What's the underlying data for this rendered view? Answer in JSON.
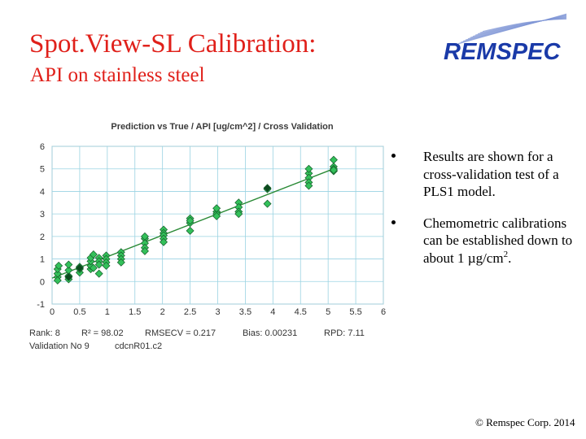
{
  "slide": {
    "title": "Spot.View-SL Calibration:",
    "subtitle": "API on stainless steel",
    "footer": "© Remspec Corp. 2014"
  },
  "logo": {
    "text": "REMSPEC",
    "color": "#1a3aa8",
    "stripe_color": "#7f95d6"
  },
  "bullets": [
    {
      "text": "Results are shown for a cross-validation test of a PLS1 model.",
      "superscript": ""
    },
    {
      "text": "Chemometric calibrations can be established down to about 1 µg/cm",
      "superscript": "2",
      "suffix": "."
    }
  ],
  "chart_data": {
    "type": "scatter",
    "title": "Prediction vs True  /  API [ug/cm^2]  /  Cross Validation",
    "xlim": [
      0,
      6
    ],
    "ylim": [
      -1,
      6
    ],
    "x_ticks": [
      "0",
      "0.5",
      "1",
      "1.5",
      "2",
      "2.5",
      "3",
      "3.5",
      "4",
      "4.5",
      "5",
      "5.5",
      "6"
    ],
    "y_ticks": [
      "-1",
      "0",
      "1",
      "2",
      "3",
      "4",
      "5",
      "6"
    ],
    "grid": true,
    "colors": {
      "point": "#33c05a",
      "point_dark": "#155c2a",
      "highlight": "#0d4a1e",
      "line": "#2a8a36",
      "grid": "#9ad3e2",
      "axis_text": "#333333",
      "title": "#3a3a3a"
    },
    "series": [
      {
        "points": [
          [
            0.1,
            0.2
          ],
          [
            0.1,
            0.35
          ],
          [
            0.1,
            0.55
          ],
          [
            0.1,
            0.05
          ],
          [
            0.12,
            0.7
          ],
          [
            0.3,
            0.25
          ],
          [
            0.3,
            0.5
          ],
          [
            0.3,
            0.75
          ],
          [
            0.3,
            0.1
          ],
          [
            0.5,
            0.4
          ],
          [
            0.5,
            0.55
          ],
          [
            0.5,
            0.65
          ],
          [
            0.7,
            0.55
          ],
          [
            0.7,
            0.7
          ],
          [
            0.7,
            0.9
          ],
          [
            0.7,
            1.05
          ],
          [
            0.75,
            1.2
          ],
          [
            0.75,
            0.6
          ],
          [
            0.85,
            1.05
          ],
          [
            0.85,
            0.9
          ],
          [
            0.85,
            0.75
          ],
          [
            0.85,
            0.35
          ],
          [
            0.98,
            1.15
          ],
          [
            0.98,
            1.0
          ],
          [
            0.98,
            0.85
          ],
          [
            0.98,
            0.7
          ],
          [
            1.25,
            1.3
          ],
          [
            1.25,
            1.15
          ],
          [
            1.25,
            1.0
          ],
          [
            1.25,
            0.85
          ],
          [
            1.68,
            1.9
          ],
          [
            1.68,
            1.7
          ],
          [
            1.68,
            1.5
          ],
          [
            1.68,
            2.0
          ],
          [
            1.68,
            1.35
          ],
          [
            2.02,
            2.3
          ],
          [
            2.02,
            2.15
          ],
          [
            2.02,
            2.05
          ],
          [
            2.02,
            1.9
          ],
          [
            2.02,
            1.75
          ],
          [
            2.5,
            2.8
          ],
          [
            2.5,
            2.6
          ],
          [
            2.5,
            2.7
          ],
          [
            2.5,
            2.25
          ],
          [
            2.98,
            3.1
          ],
          [
            2.98,
            3.0
          ],
          [
            2.98,
            2.9
          ],
          [
            2.98,
            3.25
          ],
          [
            3.38,
            3.5
          ],
          [
            3.38,
            3.3
          ],
          [
            3.38,
            3.1
          ],
          [
            3.38,
            3.0
          ],
          [
            3.9,
            4.1
          ],
          [
            3.9,
            3.45
          ],
          [
            4.65,
            4.8
          ],
          [
            4.65,
            4.6
          ],
          [
            4.65,
            4.4
          ],
          [
            4.65,
            5.0
          ],
          [
            4.65,
            4.25
          ],
          [
            5.1,
            5.4
          ],
          [
            5.1,
            5.1
          ],
          [
            5.1,
            4.9
          ],
          [
            5.1,
            5.0
          ],
          [
            5.1,
            4.95
          ]
        ],
        "highlight_points": [
          [
            3.9,
            4.15
          ],
          [
            0.5,
            0.6
          ],
          [
            0.3,
            0.2
          ]
        ]
      }
    ],
    "fit_line": {
      "x": [
        0,
        5.15
      ],
      "y": [
        0.15,
        5.05
      ]
    },
    "footer_stats": {
      "rank": "Rank: 8",
      "r2": "R² = 98.02",
      "rmsecv": "RMSECV = 0.217",
      "bias": "Bias: 0.00231",
      "rpd": "RPD: 7.11",
      "validation": "Validation No 9",
      "file": "cdcnR01.c2"
    }
  }
}
